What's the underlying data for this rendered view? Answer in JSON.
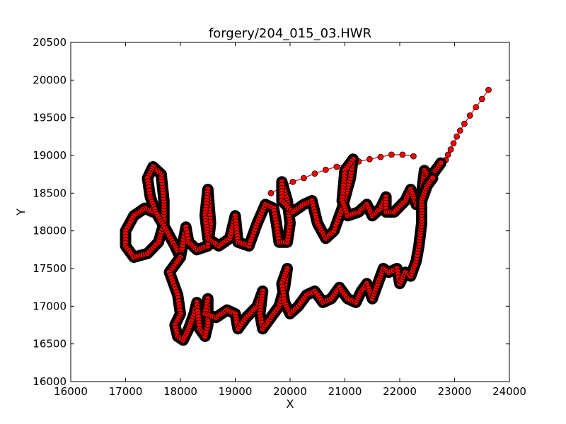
{
  "chart_data": {
    "type": "scatter",
    "title": "forgery/204_015_03.HWR",
    "xlabel": "X",
    "ylabel": "Y",
    "xlim": [
      16000,
      24000
    ],
    "ylim": [
      16000,
      20500
    ],
    "x_ticks": [
      16000,
      17000,
      18000,
      19000,
      20000,
      21000,
      22000,
      23000,
      24000
    ],
    "y_ticks": [
      16000,
      16500,
      17000,
      17500,
      18000,
      18500,
      19000,
      19500,
      20000,
      20500
    ],
    "x_tick_labels": [
      "16000",
      "17000",
      "18000",
      "19000",
      "20000",
      "21000",
      "22000",
      "23000",
      "24000"
    ],
    "y_tick_labels": [
      "16000",
      "16500",
      "17000",
      "17500",
      "18000",
      "18500",
      "19000",
      "19500",
      "20000",
      "20500"
    ],
    "grid": false,
    "legend": "none",
    "colors": {
      "marker_fill": "#ff0000",
      "marker_edge": "#000000",
      "line": "#ff0000",
      "pen_trace": "#000000"
    },
    "series": [
      {
        "role": "pen-air-movement",
        "points": [
          [
            23620,
            19870
          ],
          [
            23500,
            19750
          ],
          [
            23390,
            19640
          ],
          [
            23280,
            19530
          ],
          [
            23180,
            19420
          ],
          [
            23100,
            19330
          ],
          [
            23040,
            19250
          ],
          [
            22980,
            19160
          ],
          [
            22930,
            19080
          ],
          [
            22880,
            19010
          ],
          [
            22840,
            18940
          ]
        ]
      },
      {
        "role": "connector-upper-arc",
        "points": [
          [
            19650,
            18500
          ],
          [
            19850,
            18580
          ],
          [
            20050,
            18650
          ],
          [
            20250,
            18700
          ],
          [
            20450,
            18760
          ],
          [
            20650,
            18810
          ],
          [
            20850,
            18850
          ],
          [
            21050,
            18890
          ],
          [
            21250,
            18920
          ],
          [
            21450,
            18950
          ],
          [
            21650,
            18980
          ],
          [
            21850,
            19010
          ],
          [
            22050,
            19010
          ],
          [
            22250,
            18990
          ]
        ]
      },
      {
        "role": "signature-line-1",
        "points": [
          [
            17500,
            18250
          ],
          [
            17350,
            18300
          ],
          [
            17150,
            18200
          ],
          [
            17000,
            18000
          ],
          [
            17000,
            17800
          ],
          [
            17150,
            17650
          ],
          [
            17400,
            17700
          ],
          [
            17600,
            17850
          ],
          [
            17700,
            18100
          ],
          [
            17700,
            18400
          ],
          [
            17650,
            18750
          ],
          [
            17500,
            18850
          ],
          [
            17400,
            18700
          ],
          [
            17450,
            18450
          ],
          [
            17550,
            18250
          ],
          [
            17750,
            18000
          ],
          [
            17900,
            17800
          ],
          [
            18000,
            17650
          ],
          [
            18050,
            17850
          ],
          [
            18100,
            18050
          ],
          [
            18150,
            17850
          ],
          [
            18300,
            17750
          ],
          [
            18500,
            17800
          ],
          [
            18550,
            18100
          ],
          [
            18500,
            18550
          ],
          [
            18450,
            18200
          ],
          [
            18500,
            17900
          ],
          [
            18700,
            17800
          ],
          [
            18900,
            17900
          ],
          [
            19000,
            18200
          ],
          [
            19050,
            17850
          ],
          [
            19250,
            17800
          ],
          [
            19400,
            18100
          ],
          [
            19550,
            18350
          ],
          [
            19700,
            18300
          ],
          [
            19750,
            18100
          ],
          [
            19800,
            17850
          ],
          [
            19950,
            17850
          ],
          [
            20000,
            18100
          ],
          [
            19950,
            18400
          ],
          [
            19850,
            18650
          ],
          [
            19850,
            18400
          ],
          [
            20050,
            18250
          ],
          [
            20250,
            18350
          ],
          [
            20400,
            18400
          ],
          [
            20500,
            18100
          ],
          [
            20650,
            17900
          ],
          [
            20800,
            18000
          ],
          [
            20950,
            18300
          ],
          [
            21100,
            18700
          ],
          [
            21150,
            18950
          ],
          [
            21000,
            18800
          ],
          [
            20950,
            18400
          ],
          [
            21050,
            18200
          ],
          [
            21250,
            18250
          ],
          [
            21400,
            18350
          ],
          [
            21500,
            18200
          ],
          [
            21650,
            18300
          ],
          [
            21750,
            18450
          ],
          [
            21750,
            18250
          ],
          [
            21900,
            18250
          ],
          [
            22100,
            18400
          ],
          [
            22200,
            18550
          ],
          [
            22300,
            18350
          ],
          [
            22400,
            18500
          ],
          [
            22450,
            18800
          ],
          [
            22550,
            18700
          ],
          [
            22650,
            18800
          ],
          [
            22750,
            18900
          ]
        ]
      },
      {
        "role": "signature-line-2",
        "points": [
          [
            18000,
            17650
          ],
          [
            17800,
            17450
          ],
          [
            17950,
            17150
          ],
          [
            18000,
            16900
          ],
          [
            17900,
            16750
          ],
          [
            17950,
            16600
          ],
          [
            18050,
            16550
          ],
          [
            18150,
            16700
          ],
          [
            18250,
            16900
          ],
          [
            18300,
            17050
          ],
          [
            18350,
            16700
          ],
          [
            18450,
            16600
          ],
          [
            18500,
            16750
          ],
          [
            18500,
            17100
          ],
          [
            18450,
            16900
          ],
          [
            18650,
            16850
          ],
          [
            18850,
            16950
          ],
          [
            19000,
            16900
          ],
          [
            19050,
            16700
          ],
          [
            19200,
            16850
          ],
          [
            19400,
            17000
          ],
          [
            19500,
            17200
          ],
          [
            19450,
            16900
          ],
          [
            19500,
            16700
          ],
          [
            19600,
            16800
          ],
          [
            19800,
            17000
          ],
          [
            19900,
            17250
          ],
          [
            19950,
            17500
          ],
          [
            19850,
            17300
          ],
          [
            19900,
            17050
          ],
          [
            20000,
            16900
          ],
          [
            20150,
            17000
          ],
          [
            20300,
            17150
          ],
          [
            20450,
            17200
          ],
          [
            20600,
            17050
          ],
          [
            20750,
            17100
          ],
          [
            20900,
            17250
          ],
          [
            21050,
            17100
          ],
          [
            21200,
            17050
          ],
          [
            21300,
            17200
          ],
          [
            21400,
            17300
          ],
          [
            21500,
            17100
          ],
          [
            21600,
            17300
          ],
          [
            21700,
            17500
          ],
          [
            21800,
            17450
          ],
          [
            21950,
            17500
          ],
          [
            22000,
            17300
          ],
          [
            22100,
            17450
          ],
          [
            22200,
            17400
          ],
          [
            22300,
            17600
          ],
          [
            22350,
            17800
          ],
          [
            22400,
            18100
          ],
          [
            22400,
            18400
          ],
          [
            22500,
            18600
          ],
          [
            22600,
            18700
          ]
        ]
      }
    ]
  }
}
